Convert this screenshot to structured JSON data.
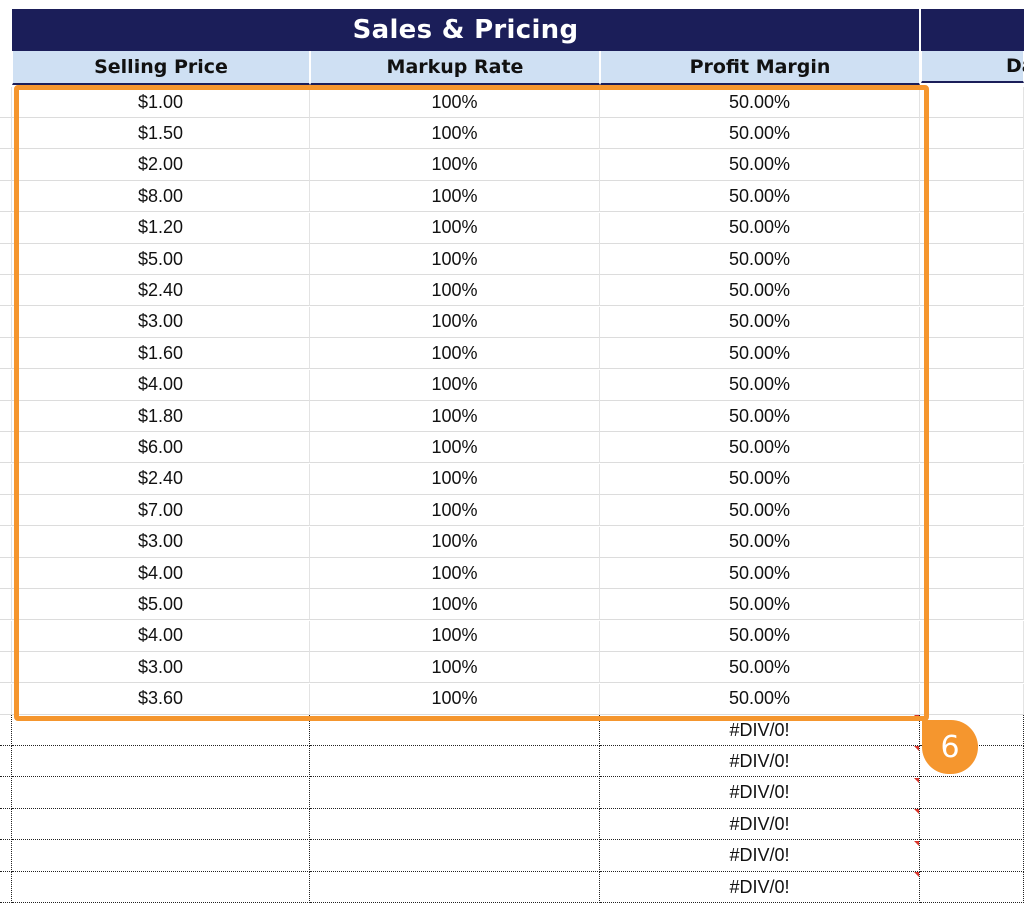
{
  "section_title": "Sales & Pricing",
  "columns": {
    "selling_price": "Selling Price",
    "markup_rate": "Markup Rate",
    "profit_margin": "Profit Margin",
    "next_partial": "Da"
  },
  "rows": [
    {
      "price": "$1.00",
      "markup": "100%",
      "margin": "50.00%"
    },
    {
      "price": "$1.50",
      "markup": "100%",
      "margin": "50.00%"
    },
    {
      "price": "$2.00",
      "markup": "100%",
      "margin": "50.00%"
    },
    {
      "price": "$8.00",
      "markup": "100%",
      "margin": "50.00%"
    },
    {
      "price": "$1.20",
      "markup": "100%",
      "margin": "50.00%"
    },
    {
      "price": "$5.00",
      "markup": "100%",
      "margin": "50.00%"
    },
    {
      "price": "$2.40",
      "markup": "100%",
      "margin": "50.00%"
    },
    {
      "price": "$3.00",
      "markup": "100%",
      "margin": "50.00%"
    },
    {
      "price": "$1.60",
      "markup": "100%",
      "margin": "50.00%"
    },
    {
      "price": "$4.00",
      "markup": "100%",
      "margin": "50.00%"
    },
    {
      "price": "$1.80",
      "markup": "100%",
      "margin": "50.00%"
    },
    {
      "price": "$6.00",
      "markup": "100%",
      "margin": "50.00%"
    },
    {
      "price": "$2.40",
      "markup": "100%",
      "margin": "50.00%"
    },
    {
      "price": "$7.00",
      "markup": "100%",
      "margin": "50.00%"
    },
    {
      "price": "$3.00",
      "markup": "100%",
      "margin": "50.00%"
    },
    {
      "price": "$4.00",
      "markup": "100%",
      "margin": "50.00%"
    },
    {
      "price": "$5.00",
      "markup": "100%",
      "margin": "50.00%"
    },
    {
      "price": "$4.00",
      "markup": "100%",
      "margin": "50.00%"
    },
    {
      "price": "$3.00",
      "markup": "100%",
      "margin": "50.00%"
    },
    {
      "price": "$3.60",
      "markup": "100%",
      "margin": "50.00%"
    }
  ],
  "empty_rows": [
    {
      "price": "",
      "markup": "",
      "margin": "#DIV/0!"
    },
    {
      "price": "",
      "markup": "",
      "margin": "#DIV/0!"
    },
    {
      "price": "",
      "markup": "",
      "margin": "#DIV/0!"
    },
    {
      "price": "",
      "markup": "",
      "margin": "#DIV/0!"
    },
    {
      "price": "",
      "markup": "",
      "margin": "#DIV/0!"
    },
    {
      "price": "",
      "markup": "",
      "margin": "#DIV/0!"
    }
  ],
  "callout_number": "6",
  "colors": {
    "title_bg": "#1b1e59",
    "header_bg": "#cfe0f3",
    "highlight": "#f5962e",
    "error_marker": "#d9352b"
  }
}
